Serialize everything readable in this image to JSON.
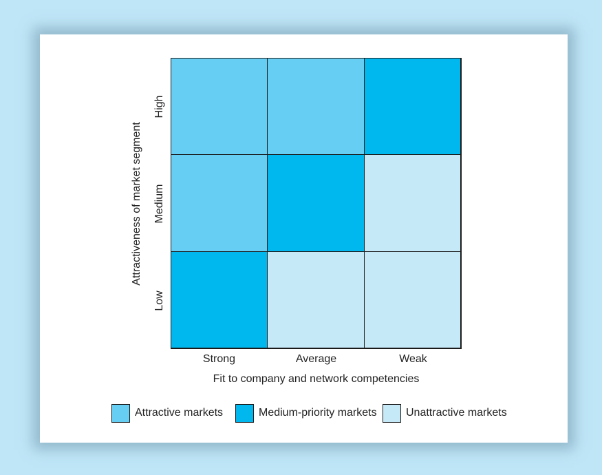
{
  "diagram": {
    "columns": [
      "Strong",
      "Average",
      "Weak"
    ],
    "rows": [
      "High",
      "Medium",
      "Low"
    ],
    "x_axis_title": "Fit to company and network competencies",
    "y_axis_title": "Attractiveness of market segment",
    "cells": [
      [
        "attractive",
        "attractive",
        "medium"
      ],
      [
        "attractive",
        "medium",
        "unattractive"
      ],
      [
        "medium",
        "unattractive",
        "unattractive"
      ]
    ],
    "legend": [
      {
        "key": "attractive",
        "label": "Attractive markets",
        "color": "#66cdf3"
      },
      {
        "key": "medium",
        "label": "Medium-priority markets",
        "color": "#00b8ee"
      },
      {
        "key": "unattractive",
        "label": "Unattractive markets",
        "color": "#c6e9f8"
      }
    ]
  }
}
